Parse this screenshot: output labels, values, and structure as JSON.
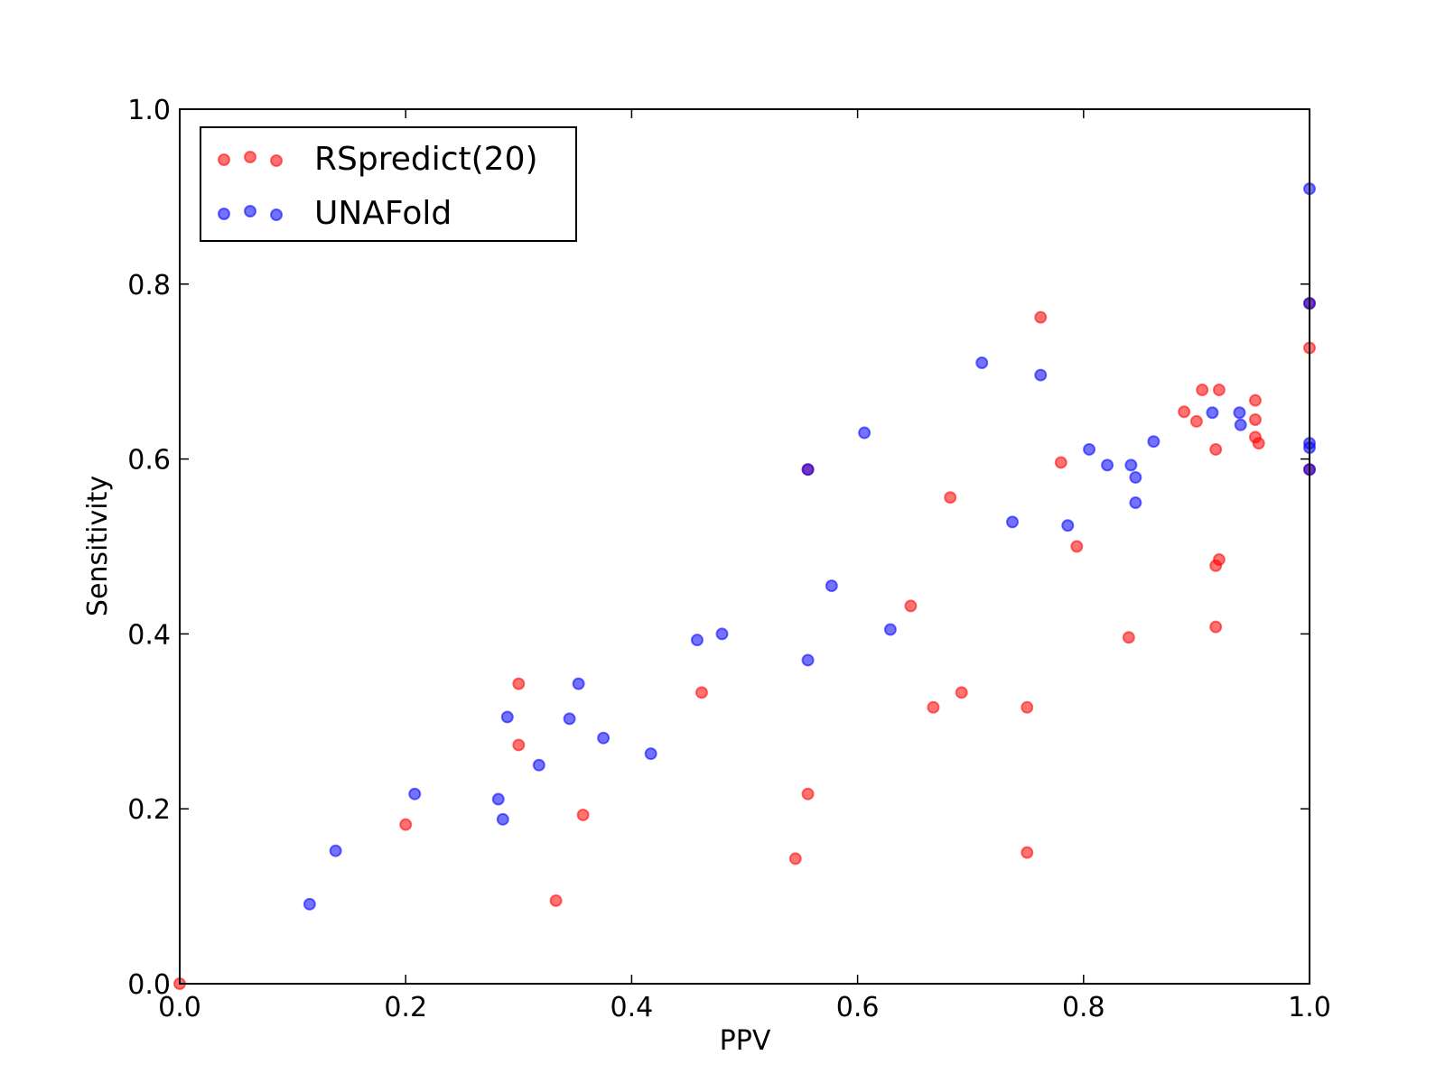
{
  "chart_data": {
    "type": "scatter",
    "title": "",
    "xlabel": "PPV",
    "ylabel": "Sensitivity",
    "xlim": [
      0.0,
      1.0
    ],
    "ylim": [
      0.0,
      1.0
    ],
    "xticks": [
      "0.0",
      "0.2",
      "0.4",
      "0.6",
      "0.8",
      "1.0"
    ],
    "yticks": [
      "0.0",
      "0.2",
      "0.4",
      "0.6",
      "0.8",
      "1.0"
    ],
    "grid": false,
    "legend_position": "top-left",
    "series": [
      {
        "name": "RSpredict(20)",
        "color": "#ff0000",
        "points": [
          [
            0.0,
            0.0
          ],
          [
            0.2,
            0.182
          ],
          [
            0.3,
            0.343
          ],
          [
            0.3,
            0.273
          ],
          [
            0.333,
            0.095
          ],
          [
            0.357,
            0.193
          ],
          [
            0.462,
            0.333
          ],
          [
            0.545,
            0.143
          ],
          [
            0.556,
            0.217
          ],
          [
            0.556,
            0.588
          ],
          [
            0.647,
            0.432
          ],
          [
            0.667,
            0.316
          ],
          [
            0.682,
            0.556
          ],
          [
            0.692,
            0.333
          ],
          [
            0.75,
            0.316
          ],
          [
            0.75,
            0.15
          ],
          [
            0.762,
            0.762
          ],
          [
            0.78,
            0.596
          ],
          [
            0.794,
            0.5
          ],
          [
            0.84,
            0.396
          ],
          [
            0.889,
            0.654
          ],
          [
            0.9,
            0.643
          ],
          [
            0.905,
            0.679
          ],
          [
            0.917,
            0.478
          ],
          [
            0.917,
            0.611
          ],
          [
            0.917,
            0.408
          ],
          [
            0.92,
            0.679
          ],
          [
            0.92,
            0.485
          ],
          [
            0.952,
            0.667
          ],
          [
            0.952,
            0.645
          ],
          [
            0.952,
            0.625
          ],
          [
            0.955,
            0.618
          ],
          [
            1.0,
            0.778
          ],
          [
            1.0,
            0.727
          ],
          [
            1.0,
            0.588
          ]
        ]
      },
      {
        "name": "UNAFold",
        "color": "#0000ff",
        "points": [
          [
            0.115,
            0.091
          ],
          [
            0.138,
            0.152
          ],
          [
            0.208,
            0.217
          ],
          [
            0.282,
            0.211
          ],
          [
            0.286,
            0.188
          ],
          [
            0.29,
            0.305
          ],
          [
            0.318,
            0.25
          ],
          [
            0.345,
            0.303
          ],
          [
            0.353,
            0.343
          ],
          [
            0.375,
            0.281
          ],
          [
            0.417,
            0.263
          ],
          [
            0.458,
            0.393
          ],
          [
            0.48,
            0.4
          ],
          [
            0.556,
            0.588
          ],
          [
            0.556,
            0.37
          ],
          [
            0.577,
            0.455
          ],
          [
            0.606,
            0.63
          ],
          [
            0.629,
            0.405
          ],
          [
            0.71,
            0.71
          ],
          [
            0.737,
            0.528
          ],
          [
            0.762,
            0.696
          ],
          [
            0.786,
            0.524
          ],
          [
            0.805,
            0.611
          ],
          [
            0.821,
            0.593
          ],
          [
            0.842,
            0.593
          ],
          [
            0.846,
            0.579
          ],
          [
            0.846,
            0.55
          ],
          [
            0.862,
            0.62
          ],
          [
            0.914,
            0.653
          ],
          [
            0.938,
            0.653
          ],
          [
            0.939,
            0.639
          ],
          [
            1.0,
            0.909
          ],
          [
            1.0,
            0.778
          ],
          [
            1.0,
            0.618
          ],
          [
            1.0,
            0.613
          ],
          [
            1.0,
            0.588
          ]
        ]
      }
    ]
  }
}
